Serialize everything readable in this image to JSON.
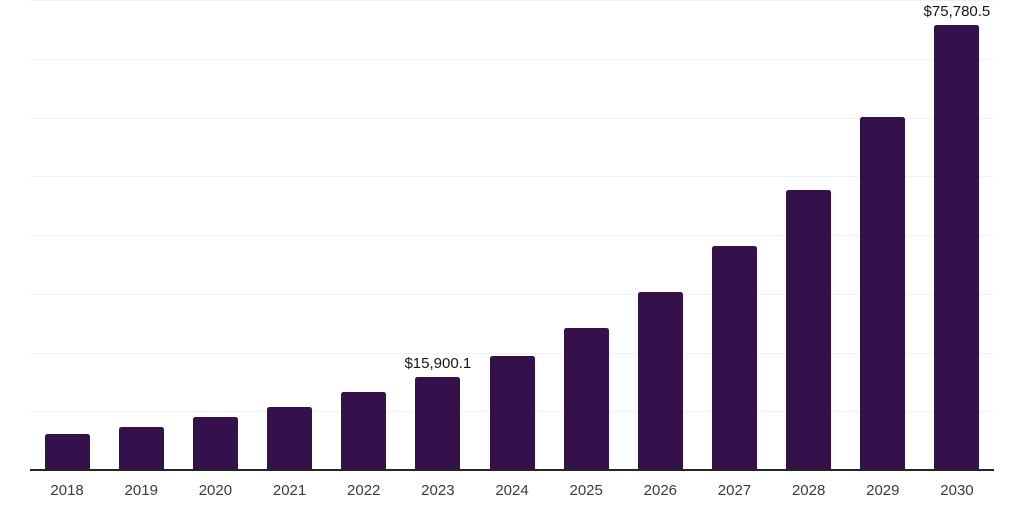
{
  "chart_data": {
    "type": "bar",
    "title": "",
    "xlabel": "",
    "ylabel": "",
    "categories": [
      "2018",
      "2019",
      "2020",
      "2021",
      "2022",
      "2023",
      "2024",
      "2025",
      "2026",
      "2027",
      "2028",
      "2029",
      "2030"
    ],
    "values": [
      6100,
      7350,
      8950,
      10800,
      13300,
      15900.1,
      19400,
      24200,
      30350,
      38200,
      47700,
      60100,
      75780.5
    ],
    "value_labels": {
      "2023": "$15,900.1",
      "2030": "$75,780.5"
    },
    "ylim": [
      0,
      80000
    ],
    "gridline_step": 10000,
    "grid": "horizontal",
    "legend": "none"
  },
  "colors": {
    "bar": "#35114b",
    "gridline": "#f1f1f1",
    "axis_line": "#242424",
    "tick_label": "#3b3b3b",
    "value_label": "#161616",
    "background": "#ffffff"
  }
}
